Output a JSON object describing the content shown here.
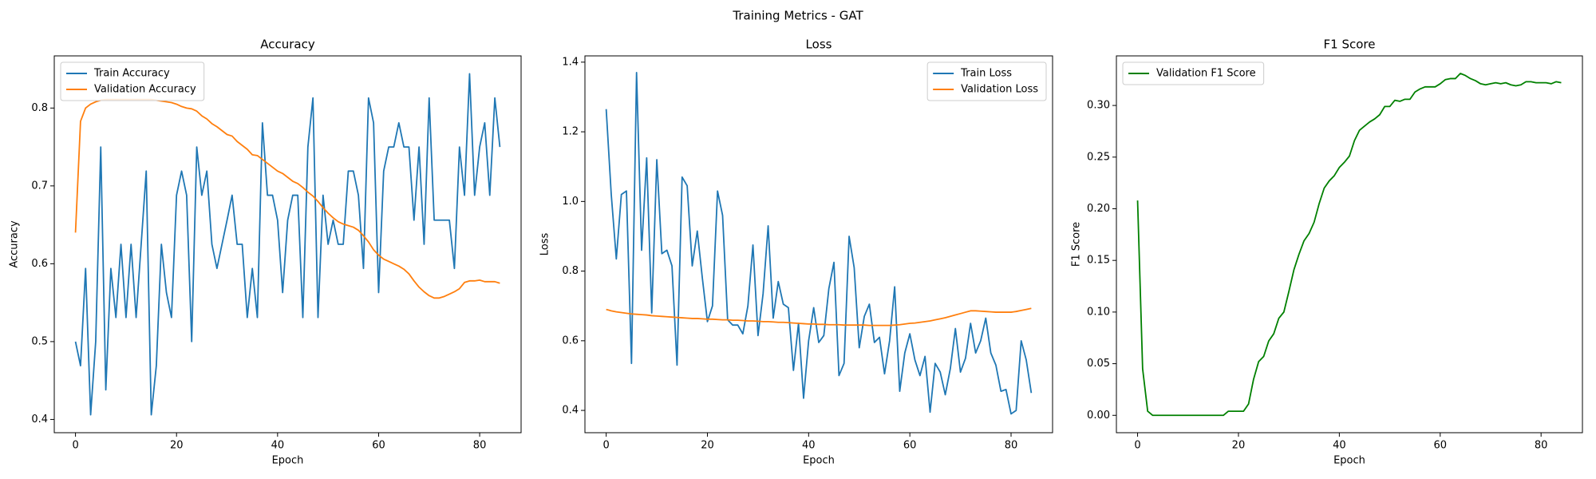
{
  "title": "Training Metrics - GAT",
  "chart_data": [
    {
      "type": "line",
      "title": "Accuracy",
      "x_label": "Epoch",
      "y_label": "Accuracy",
      "legend": "upper left",
      "x": [
        0,
        1,
        2,
        3,
        4,
        5,
        6,
        7,
        8,
        9,
        10,
        11,
        12,
        13,
        14,
        15,
        16,
        17,
        18,
        19,
        20,
        21,
        22,
        23,
        24,
        25,
        26,
        27,
        28,
        29,
        30,
        31,
        32,
        33,
        34,
        35,
        36,
        37,
        38,
        39,
        40,
        41,
        42,
        43,
        44,
        45,
        46,
        47,
        48,
        49,
        50,
        51,
        52,
        53,
        54,
        55,
        56,
        57,
        58,
        59,
        60,
        61,
        62,
        63,
        64,
        65,
        66,
        67,
        68,
        69,
        70,
        71,
        72,
        73,
        74,
        75,
        76,
        77,
        78,
        79,
        80,
        81,
        82,
        83,
        84
      ],
      "series": [
        {
          "name": "Train Accuracy",
          "color": "#1f77b4",
          "values": [
            0.5,
            0.469,
            0.594,
            0.406,
            0.5,
            0.75,
            0.438,
            0.594,
            0.531,
            0.625,
            0.531,
            0.625,
            0.531,
            0.625,
            0.719,
            0.406,
            0.469,
            0.625,
            0.563,
            0.531,
            0.688,
            0.719,
            0.688,
            0.5,
            0.75,
            0.688,
            0.719,
            0.625,
            0.594,
            0.625,
            0.656,
            0.688,
            0.625,
            0.625,
            0.531,
            0.594,
            0.531,
            0.781,
            0.688,
            0.688,
            0.656,
            0.563,
            0.656,
            0.688,
            0.688,
            0.531,
            0.75,
            0.813,
            0.531,
            0.688,
            0.625,
            0.656,
            0.625,
            0.625,
            0.719,
            0.719,
            0.688,
            0.594,
            0.813,
            0.781,
            0.563,
            0.719,
            0.75,
            0.75,
            0.781,
            0.75,
            0.75,
            0.656,
            0.75,
            0.625,
            0.813,
            0.656,
            0.656,
            0.656,
            0.656,
            0.594,
            0.75,
            0.688,
            0.844,
            0.688,
            0.75,
            0.781,
            0.688,
            0.813,
            0.75
          ]
        },
        {
          "name": "Validation Accuracy",
          "color": "#ff7f0e",
          "values": [
            0.64,
            0.783,
            0.8,
            0.805,
            0.808,
            0.81,
            0.811,
            0.811,
            0.811,
            0.811,
            0.811,
            0.811,
            0.811,
            0.811,
            0.811,
            0.811,
            0.81,
            0.809,
            0.808,
            0.807,
            0.805,
            0.802,
            0.8,
            0.799,
            0.796,
            0.79,
            0.786,
            0.78,
            0.776,
            0.771,
            0.766,
            0.764,
            0.757,
            0.752,
            0.747,
            0.74,
            0.739,
            0.734,
            0.729,
            0.724,
            0.719,
            0.716,
            0.711,
            0.706,
            0.703,
            0.698,
            0.692,
            0.687,
            0.68,
            0.672,
            0.665,
            0.659,
            0.654,
            0.651,
            0.649,
            0.647,
            0.643,
            0.636,
            0.628,
            0.618,
            0.611,
            0.606,
            0.603,
            0.6,
            0.597,
            0.593,
            0.587,
            0.578,
            0.57,
            0.564,
            0.559,
            0.556,
            0.556,
            0.558,
            0.561,
            0.564,
            0.568,
            0.576,
            0.578,
            0.578,
            0.579,
            0.577,
            0.577,
            0.577,
            0.575
          ]
        }
      ],
      "xlim": [
        -4.2,
        88.2
      ],
      "ylim": [
        0.383,
        0.867
      ],
      "xticks": [
        0,
        20,
        40,
        60,
        80
      ],
      "yticks": [
        0.4,
        0.5,
        0.6,
        0.7,
        0.8
      ]
    },
    {
      "type": "line",
      "title": "Loss",
      "x_label": "Epoch",
      "y_label": "Loss",
      "legend": "upper right",
      "x": [
        0,
        1,
        2,
        3,
        4,
        5,
        6,
        7,
        8,
        9,
        10,
        11,
        12,
        13,
        14,
        15,
        16,
        17,
        18,
        19,
        20,
        21,
        22,
        23,
        24,
        25,
        26,
        27,
        28,
        29,
        30,
        31,
        32,
        33,
        34,
        35,
        36,
        37,
        38,
        39,
        40,
        41,
        42,
        43,
        44,
        45,
        46,
        47,
        48,
        49,
        50,
        51,
        52,
        53,
        54,
        55,
        56,
        57,
        58,
        59,
        60,
        61,
        62,
        63,
        64,
        65,
        66,
        67,
        68,
        69,
        70,
        71,
        72,
        73,
        74,
        75,
        76,
        77,
        78,
        79,
        80,
        81,
        82,
        83,
        84
      ],
      "series": [
        {
          "name": "Train Loss",
          "color": "#1f77b4",
          "values": [
            1.265,
            1.02,
            0.835,
            1.02,
            1.03,
            0.535,
            1.37,
            0.86,
            1.125,
            0.68,
            1.12,
            0.85,
            0.86,
            0.815,
            0.53,
            1.07,
            1.045,
            0.815,
            0.915,
            0.78,
            0.655,
            0.7,
            1.03,
            0.96,
            0.66,
            0.645,
            0.645,
            0.62,
            0.7,
            0.875,
            0.615,
            0.735,
            0.93,
            0.665,
            0.77,
            0.705,
            0.695,
            0.515,
            0.65,
            0.435,
            0.6,
            0.695,
            0.595,
            0.615,
            0.75,
            0.825,
            0.5,
            0.535,
            0.9,
            0.81,
            0.58,
            0.67,
            0.705,
            0.595,
            0.61,
            0.505,
            0.6,
            0.755,
            0.455,
            0.565,
            0.62,
            0.545,
            0.5,
            0.555,
            0.395,
            0.535,
            0.51,
            0.445,
            0.52,
            0.635,
            0.51,
            0.55,
            0.65,
            0.565,
            0.6,
            0.665,
            0.565,
            0.53,
            0.455,
            0.46,
            0.39,
            0.4,
            0.6,
            0.545,
            0.45
          ]
        },
        {
          "name": "Validation Loss",
          "color": "#ff7f0e",
          "values": [
            0.69,
            0.686,
            0.683,
            0.681,
            0.679,
            0.677,
            0.676,
            0.675,
            0.674,
            0.672,
            0.671,
            0.67,
            0.669,
            0.668,
            0.667,
            0.666,
            0.665,
            0.664,
            0.664,
            0.663,
            0.662,
            0.662,
            0.661,
            0.66,
            0.66,
            0.659,
            0.659,
            0.658,
            0.657,
            0.657,
            0.656,
            0.655,
            0.655,
            0.654,
            0.653,
            0.653,
            0.652,
            0.651,
            0.65,
            0.649,
            0.648,
            0.648,
            0.647,
            0.647,
            0.646,
            0.646,
            0.646,
            0.645,
            0.645,
            0.645,
            0.645,
            0.645,
            0.644,
            0.644,
            0.644,
            0.644,
            0.644,
            0.645,
            0.646,
            0.648,
            0.65,
            0.651,
            0.653,
            0.655,
            0.657,
            0.66,
            0.663,
            0.666,
            0.67,
            0.674,
            0.678,
            0.682,
            0.686,
            0.686,
            0.685,
            0.684,
            0.683,
            0.682,
            0.682,
            0.682,
            0.682,
            0.684,
            0.687,
            0.69,
            0.693
          ]
        }
      ],
      "xlim": [
        -4.2,
        88.2
      ],
      "ylim": [
        0.336,
        1.418
      ],
      "xticks": [
        0,
        20,
        40,
        60,
        80
      ],
      "yticks": [
        0.4,
        0.6,
        0.8,
        {
          "value": 1,
          "label": "1.0"
        },
        1.2,
        1.4
      ]
    },
    {
      "type": "line",
      "title": "F1 Score",
      "x_label": "Epoch",
      "y_label": "F1 Score",
      "legend": "upper left",
      "x": [
        0,
        1,
        2,
        3,
        4,
        5,
        6,
        7,
        8,
        9,
        10,
        11,
        12,
        13,
        14,
        15,
        16,
        17,
        18,
        19,
        20,
        21,
        22,
        23,
        24,
        25,
        26,
        27,
        28,
        29,
        30,
        31,
        32,
        33,
        34,
        35,
        36,
        37,
        38,
        39,
        40,
        41,
        42,
        43,
        44,
        45,
        46,
        47,
        48,
        49,
        50,
        51,
        52,
        53,
        54,
        55,
        56,
        57,
        58,
        59,
        60,
        61,
        62,
        63,
        64,
        65,
        66,
        67,
        68,
        69,
        70,
        71,
        72,
        73,
        74,
        75,
        76,
        77,
        78,
        79,
        80,
        81,
        82,
        83,
        84
      ],
      "series": [
        {
          "name": "Validation F1 Score",
          "color": "#008000",
          "values": [
            0.208,
            0.045,
            0.004,
            0,
            0,
            0,
            0,
            0,
            0,
            0,
            0,
            0,
            0,
            0,
            0,
            0,
            0,
            0,
            0.004,
            0.004,
            0.004,
            0.004,
            0.011,
            0.035,
            0.052,
            0.057,
            0.072,
            0.079,
            0.094,
            0.1,
            0.12,
            0.141,
            0.156,
            0.169,
            0.176,
            0.187,
            0.205,
            0.22,
            0.227,
            0.232,
            0.24,
            0.245,
            0.251,
            0.266,
            0.276,
            0.28,
            0.284,
            0.287,
            0.291,
            0.299,
            0.299,
            0.305,
            0.304,
            0.306,
            0.306,
            0.313,
            0.316,
            0.318,
            0.318,
            0.318,
            0.321,
            0.325,
            0.326,
            0.326,
            0.331,
            0.329,
            0.326,
            0.324,
            0.321,
            0.32,
            0.321,
            0.322,
            0.321,
            0.322,
            0.32,
            0.319,
            0.32,
            0.323,
            0.323,
            0.322,
            0.322,
            0.322,
            0.321,
            0.323,
            0.322
          ]
        }
      ],
      "xlim": [
        -4.2,
        88.2
      ],
      "ylim": [
        -0.0168,
        0.348
      ],
      "xticks": [
        0,
        20,
        40,
        60,
        80
      ],
      "yticks": [
        {
          "value": 0,
          "label": "0.00"
        },
        0.05,
        {
          "value": 0.1,
          "label": "0.10"
        },
        0.15,
        {
          "value": 0.2,
          "label": "0.20"
        },
        0.25,
        {
          "value": 0.3,
          "label": "0.30"
        }
      ]
    }
  ]
}
